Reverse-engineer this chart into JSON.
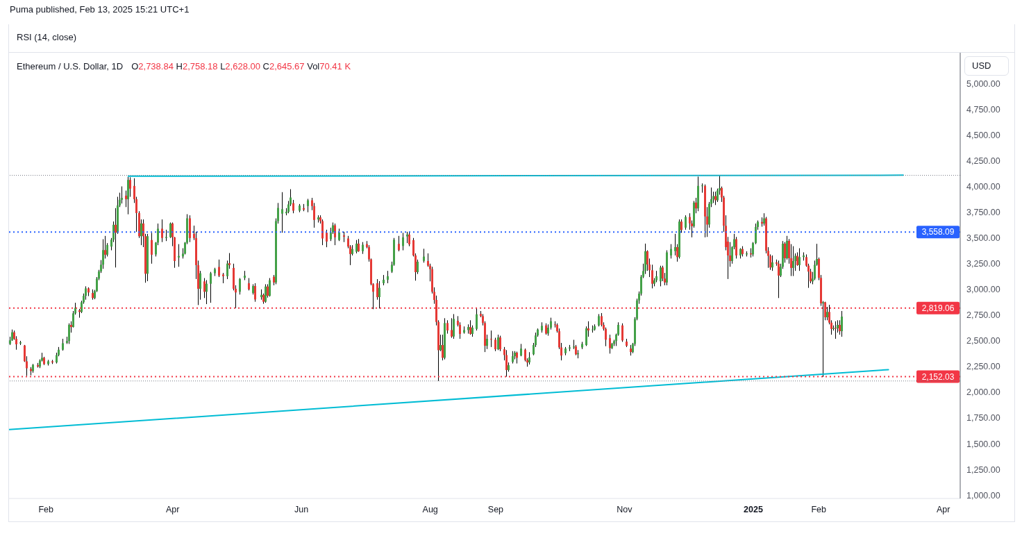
{
  "chart_data": {
    "type": "candlestick",
    "title": "Ethereum / U.S. Dollar, 1D",
    "ylabel": "USD",
    "annotations": [
      "Puma published, Feb 13, 2025 15:21 UTC+1",
      "RSI (14, close)",
      "O2,738.84 H2,758.18 L2,628.00 C2,645.67 Vol70.41 K"
    ],
    "x": [
      "2024-01-15",
      "2024-01-16",
      "2024-01-17",
      "2024-01-18",
      "2024-01-20",
      "2024-01-22",
      "2024-01-23",
      "2024-01-25",
      "2024-01-26",
      "2024-01-28",
      "2024-01-29",
      "2024-01-30",
      "2024-01-31",
      "2024-02-02",
      "2024-02-04",
      "2024-02-06",
      "2024-02-07",
      "2024-02-09",
      "2024-02-11",
      "2024-02-12",
      "2024-02-13",
      "2024-02-14",
      "2024-02-15",
      "2024-02-17",
      "2024-02-18",
      "2024-02-19",
      "2024-02-20",
      "2024-02-21",
      "2024-02-23",
      "2024-02-24",
      "2024-02-25",
      "2024-02-26",
      "2024-02-27",
      "2024-02-28",
      "2024-02-29",
      "2024-03-01",
      "2024-03-03",
      "2024-03-04",
      "2024-03-05",
      "2024-03-06",
      "2024-03-07",
      "2024-03-08",
      "2024-03-10",
      "2024-03-11",
      "2024-03-12",
      "2024-03-14",
      "2024-03-15",
      "2024-03-16",
      "2024-03-17",
      "2024-03-18",
      "2024-03-19",
      "2024-03-20",
      "2024-03-22",
      "2024-03-24",
      "2024-03-25",
      "2024-03-27",
      "2024-03-29",
      "2024-03-31",
      "2024-04-01",
      "2024-04-02",
      "2024-04-04",
      "2024-04-06",
      "2024-04-07",
      "2024-04-08",
      "2024-04-09",
      "2024-04-11",
      "2024-04-12",
      "2024-04-13",
      "2024-04-14",
      "2024-04-16",
      "2024-04-17",
      "2024-04-19",
      "2024-04-21",
      "2024-04-23",
      "2024-04-25",
      "2024-04-27",
      "2024-04-28",
      "2024-04-30",
      "2024-05-01",
      "2024-05-03",
      "2024-05-05",
      "2024-05-07",
      "2024-05-09",
      "2024-05-10",
      "2024-05-13",
      "2024-05-14",
      "2024-05-15",
      "2024-05-16",
      "2024-05-17",
      "2024-05-19",
      "2024-05-20",
      "2024-05-21",
      "2024-05-23",
      "2024-05-25",
      "2024-05-26",
      "2024-05-27",
      "2024-05-28",
      "2024-05-31",
      "2024-06-02",
      "2024-06-04",
      "2024-06-06",
      "2024-06-07",
      "2024-06-09",
      "2024-06-10",
      "2024-06-11",
      "2024-06-13",
      "2024-06-15",
      "2024-06-16",
      "2024-06-17",
      "2024-06-19",
      "2024-06-21",
      "2024-06-23",
      "2024-06-24",
      "2024-06-25",
      "2024-06-27",
      "2024-06-28",
      "2024-06-30",
      "2024-07-02",
      "2024-07-03",
      "2024-07-04",
      "2024-07-05",
      "2024-07-07",
      "2024-07-08",
      "2024-07-10",
      "2024-07-12",
      "2024-07-14",
      "2024-07-15",
      "2024-07-17",
      "2024-07-19",
      "2024-07-21",
      "2024-07-22",
      "2024-07-24",
      "2024-07-25",
      "2024-07-26",
      "2024-07-29",
      "2024-07-31",
      "2024-08-01",
      "2024-08-02",
      "2024-08-03",
      "2024-08-04",
      "2024-08-05",
      "2024-08-06",
      "2024-08-07",
      "2024-08-08",
      "2024-08-09",
      "2024-08-11",
      "2024-08-12",
      "2024-08-14",
      "2024-08-15",
      "2024-08-17",
      "2024-08-19",
      "2024-08-20",
      "2024-08-21",
      "2024-08-23",
      "2024-08-25",
      "2024-08-26",
      "2024-08-27",
      "2024-08-28",
      "2024-08-30",
      "2024-09-01",
      "2024-09-02",
      "2024-09-03",
      "2024-09-05",
      "2024-09-06",
      "2024-09-07",
      "2024-09-09",
      "2024-09-10",
      "2024-09-11",
      "2024-09-13",
      "2024-09-15",
      "2024-09-16",
      "2024-09-17",
      "2024-09-19",
      "2024-09-20",
      "2024-09-21",
      "2024-09-23",
      "2024-09-25",
      "2024-09-26",
      "2024-09-27",
      "2024-09-29",
      "2024-09-30",
      "2024-10-01",
      "2024-10-02",
      "2024-10-04",
      "2024-10-06",
      "2024-10-08",
      "2024-10-09",
      "2024-10-10",
      "2024-10-12",
      "2024-10-14",
      "2024-10-15",
      "2024-10-17",
      "2024-10-18",
      "2024-10-20",
      "2024-10-21",
      "2024-10-22",
      "2024-10-23",
      "2024-10-25",
      "2024-10-26",
      "2024-10-27",
      "2024-10-28",
      "2024-10-29",
      "2024-10-31",
      "2024-11-02",
      "2024-11-04",
      "2024-11-05",
      "2024-11-06",
      "2024-11-07",
      "2024-11-08",
      "2024-11-09",
      "2024-11-10",
      "2024-11-11",
      "2024-11-12",
      "2024-11-13",
      "2024-11-14",
      "2024-11-15",
      "2024-11-16",
      "2024-11-18",
      "2024-11-19",
      "2024-11-20",
      "2024-11-21",
      "2024-11-23",
      "2024-11-25",
      "2024-11-26",
      "2024-11-27",
      "2024-11-28",
      "2024-11-30",
      "2024-12-02",
      "2024-12-03",
      "2024-12-04",
      "2024-12-05",
      "2024-12-06",
      "2024-12-08",
      "2024-12-09",
      "2024-12-10",
      "2024-12-11",
      "2024-12-12",
      "2024-12-13",
      "2024-12-14",
      "2024-12-15",
      "2024-12-16",
      "2024-12-17",
      "2024-12-18",
      "2024-12-19",
      "2024-12-20",
      "2024-12-21",
      "2024-12-22",
      "2024-12-23",
      "2024-12-24",
      "2024-12-26",
      "2024-12-27",
      "2024-12-29",
      "2024-12-31",
      "2025-01-01",
      "2025-01-02",
      "2025-01-03",
      "2025-01-05",
      "2025-01-06",
      "2025-01-07",
      "2025-01-08",
      "2025-01-09",
      "2025-01-10",
      "2025-01-12",
      "2025-01-13",
      "2025-01-14",
      "2025-01-15",
      "2025-01-16",
      "2025-01-17",
      "2025-01-18",
      "2025-01-19",
      "2025-01-20",
      "2025-01-21",
      "2025-01-22",
      "2025-01-23",
      "2025-01-25",
      "2025-01-26",
      "2025-01-27",
      "2025-01-28",
      "2025-01-29",
      "2025-01-30",
      "2025-01-31",
      "2025-02-01",
      "2025-02-02",
      "2025-02-03",
      "2025-02-04",
      "2025-02-05",
      "2025-02-06",
      "2025-02-07",
      "2025-02-08",
      "2025-02-09",
      "2025-02-10",
      "2025-02-11",
      "2025-02-12"
    ],
    "ohlc": [
      [
        2470,
        2540,
        2460,
        2505
      ],
      [
        2505,
        2610,
        2500,
        2583
      ],
      [
        2583,
        2600,
        2510,
        2520
      ],
      [
        2520,
        2545,
        2414,
        2466
      ],
      [
        2475,
        2500,
        2460,
        2485
      ],
      [
        2455,
        2460,
        2295,
        2301
      ],
      [
        2301,
        2350,
        2159,
        2233
      ],
      [
        2227,
        2245,
        2165,
        2206
      ],
      [
        2206,
        2275,
        2190,
        2267
      ],
      [
        2263,
        2285,
        2240,
        2250
      ],
      [
        2250,
        2320,
        2235,
        2308
      ],
      [
        2308,
        2384,
        2300,
        2335
      ],
      [
        2335,
        2345,
        2265,
        2274
      ],
      [
        2274,
        2315,
        2260,
        2301
      ],
      [
        2301,
        2315,
        2275,
        2290
      ],
      [
        2290,
        2385,
        2280,
        2362
      ],
      [
        2362,
        2440,
        2350,
        2414
      ],
      [
        2414,
        2520,
        2405,
        2477
      ],
      [
        2480,
        2540,
        2470,
        2499
      ],
      [
        2499,
        2670,
        2470,
        2655
      ],
      [
        2655,
        2690,
        2580,
        2634
      ],
      [
        2634,
        2790,
        2630,
        2767
      ],
      [
        2767,
        2870,
        2755,
        2821
      ],
      [
        2797,
        2810,
        2725,
        2781
      ],
      [
        2781,
        2890,
        2770,
        2875
      ],
      [
        2875,
        2960,
        2860,
        2938
      ],
      [
        2938,
        3030,
        2900,
        3010
      ],
      [
        3010,
        3020,
        2935,
        2970
      ],
      [
        2965,
        3000,
        2900,
        2916
      ],
      [
        2916,
        2995,
        2905,
        2983
      ],
      [
        2983,
        3120,
        2975,
        3105
      ],
      [
        3105,
        3190,
        3090,
        3175
      ],
      [
        3175,
        3285,
        3160,
        3240
      ],
      [
        3240,
        3488,
        3200,
        3382
      ],
      [
        3382,
        3520,
        3300,
        3337
      ],
      [
        3337,
        3450,
        3320,
        3432
      ],
      [
        3416,
        3500,
        3380,
        3483
      ],
      [
        3483,
        3660,
        3460,
        3628
      ],
      [
        3628,
        3790,
        3213,
        3551
      ],
      [
        3551,
        3900,
        3540,
        3817
      ],
      [
        3817,
        3940,
        3800,
        3871
      ],
      [
        3871,
        4001,
        3835,
        3889
      ],
      [
        3911,
        3960,
        3800,
        3877
      ],
      [
        3877,
        4093,
        3730,
        4064
      ],
      [
        4064,
        4090,
        3900,
        3979
      ],
      [
        4006,
        4080,
        3840,
        3877
      ],
      [
        3877,
        3900,
        3560,
        3742
      ],
      [
        3742,
        3760,
        3500,
        3517
      ],
      [
        3517,
        3680,
        3430,
        3641
      ],
      [
        3641,
        3680,
        3411,
        3517
      ],
      [
        3517,
        3540,
        3065,
        3152
      ],
      [
        3152,
        3540,
        3080,
        3517
      ],
      [
        3480,
        3550,
        3250,
        3337
      ],
      [
        3340,
        3460,
        3320,
        3455
      ],
      [
        3455,
        3640,
        3430,
        3590
      ],
      [
        3590,
        3680,
        3460,
        3500
      ],
      [
        3500,
        3580,
        3470,
        3510
      ],
      [
        3508,
        3650,
        3500,
        3641
      ],
      [
        3641,
        3650,
        3420,
        3506
      ],
      [
        3506,
        3510,
        3210,
        3276
      ],
      [
        3310,
        3440,
        3220,
        3325
      ],
      [
        3320,
        3400,
        3300,
        3348
      ],
      [
        3348,
        3460,
        3340,
        3454
      ],
      [
        3454,
        3731,
        3440,
        3691
      ],
      [
        3691,
        3720,
        3460,
        3499
      ],
      [
        3540,
        3620,
        3480,
        3499
      ],
      [
        3499,
        3560,
        3101,
        3236
      ],
      [
        3236,
        3280,
        2848,
        3006
      ],
      [
        3006,
        3180,
        2900,
        3157
      ],
      [
        3078,
        3110,
        2916,
        2977
      ],
      [
        2977,
        3090,
        2857,
        3055
      ],
      [
        3055,
        3170,
        2870,
        3157
      ],
      [
        3157,
        3210,
        3130,
        3197
      ],
      [
        3218,
        3290,
        3120,
        3134
      ],
      [
        3145,
        3160,
        3060,
        3128
      ],
      [
        3128,
        3280,
        3100,
        3251
      ],
      [
        3256,
        3353,
        3200,
        3236
      ],
      [
        3209,
        3250,
        2990,
        3006
      ],
      [
        3006,
        3040,
        2819,
        2970
      ],
      [
        2977,
        3110,
        2950,
        3101
      ],
      [
        3112,
        3180,
        3090,
        3134
      ],
      [
        3060,
        3110,
        2990,
        3000
      ],
      [
        2965,
        3050,
        2950,
        3033
      ],
      [
        3033,
        3060,
        2880,
        2902
      ],
      [
        2925,
        3000,
        2900,
        2947
      ],
      [
        2947,
        2960,
        2860,
        2880
      ],
      [
        2880,
        3050,
        2870,
        3028
      ],
      [
        3028,
        3050,
        2920,
        2938
      ],
      [
        2938,
        3110,
        2930,
        3089
      ],
      [
        3123,
        3140,
        3040,
        3067
      ],
      [
        3067,
        3690,
        3050,
        3664
      ],
      [
        3664,
        3840,
        3640,
        3792
      ],
      [
        3736,
        3945,
        3551,
        3780
      ],
      [
        3740,
        3790,
        3720,
        3754
      ],
      [
        3754,
        3860,
        3740,
        3826
      ],
      [
        3826,
        3974,
        3810,
        3893
      ],
      [
        3839,
        3870,
        3740,
        3765
      ],
      [
        3765,
        3830,
        3750,
        3815
      ],
      [
        3790,
        3830,
        3760,
        3775
      ],
      [
        3810,
        3880,
        3750,
        3866
      ],
      [
        3866,
        3890,
        3770,
        3810
      ],
      [
        3810,
        3840,
        3600,
        3675
      ],
      [
        3680,
        3720,
        3650,
        3700
      ],
      [
        3700,
        3720,
        3640,
        3664
      ],
      [
        3664,
        3680,
        3430,
        3495
      ],
      [
        3551,
        3580,
        3410,
        3465
      ],
      [
        3488,
        3600,
        3470,
        3555
      ],
      [
        3555,
        3650,
        3540,
        3623
      ],
      [
        3623,
        3640,
        3430,
        3506
      ],
      [
        3480,
        3590,
        3470,
        3555
      ],
      [
        3525,
        3560,
        3460,
        3512
      ],
      [
        3495,
        3520,
        3400,
        3416
      ],
      [
        3416,
        3430,
        3236,
        3344
      ],
      [
        3344,
        3430,
        3330,
        3393
      ],
      [
        3366,
        3480,
        3350,
        3445
      ],
      [
        3445,
        3490,
        3365,
        3371
      ],
      [
        3371,
        3460,
        3345,
        3434
      ],
      [
        3440,
        3470,
        3400,
        3411
      ],
      [
        3411,
        3430,
        3270,
        3292
      ],
      [
        3292,
        3300,
        3040,
        3051
      ],
      [
        3051,
        3060,
        2808,
        2977
      ],
      [
        3060,
        3100,
        2900,
        2925
      ],
      [
        2925,
        3080,
        2815,
        3015
      ],
      [
        3060,
        3140,
        3040,
        3094
      ],
      [
        3094,
        3180,
        3060,
        3128
      ],
      [
        3172,
        3270,
        3160,
        3240
      ],
      [
        3240,
        3500,
        3230,
        3483
      ],
      [
        3443,
        3520,
        3370,
        3382
      ],
      [
        3422,
        3550,
        3380,
        3506
      ],
      [
        3515,
        3560,
        3450,
        3533
      ],
      [
        3533,
        3560,
        3420,
        3438
      ],
      [
        3479,
        3500,
        3320,
        3330
      ],
      [
        3330,
        3350,
        3085,
        3168
      ],
      [
        3168,
        3290,
        3150,
        3269
      ],
      [
        3277,
        3395,
        3260,
        3319
      ],
      [
        3276,
        3350,
        3220,
        3231
      ],
      [
        3231,
        3250,
        3078,
        3197
      ],
      [
        3197,
        3220,
        2960,
        2977
      ],
      [
        2977,
        3020,
        2860,
        2898
      ],
      [
        2898,
        2940,
        2650,
        2684
      ],
      [
        2684,
        2700,
        2110,
        2409
      ],
      [
        2409,
        2560,
        2400,
        2459
      ],
      [
        2459,
        2560,
        2310,
        2335
      ],
      [
        2335,
        2720,
        2320,
        2673
      ],
      [
        2673,
        2700,
        2570,
        2601
      ],
      [
        2605,
        2720,
        2530,
        2542
      ],
      [
        2542,
        2760,
        2520,
        2713
      ],
      [
        2695,
        2740,
        2640,
        2655
      ],
      [
        2655,
        2680,
        2520,
        2567
      ],
      [
        2580,
        2640,
        2570,
        2605
      ],
      [
        2605,
        2660,
        2570,
        2634
      ],
      [
        2634,
        2700,
        2560,
        2567
      ],
      [
        2567,
        2650,
        2540,
        2628
      ],
      [
        2616,
        2819,
        2600,
        2758
      ],
      [
        2762,
        2790,
        2730,
        2740
      ],
      [
        2740,
        2760,
        2650,
        2673
      ],
      [
        2673,
        2690,
        2391,
        2452
      ],
      [
        2452,
        2560,
        2420,
        2520
      ],
      [
        2520,
        2600,
        2440,
        2515
      ],
      [
        2511,
        2530,
        2400,
        2418
      ],
      [
        2418,
        2560,
        2410,
        2533
      ],
      [
        2533,
        2550,
        2400,
        2418
      ],
      [
        2418,
        2440,
        2310,
        2362
      ],
      [
        2362,
        2410,
        2152,
        2216
      ],
      [
        2216,
        2290,
        2200,
        2263
      ],
      [
        2295,
        2400,
        2280,
        2351
      ],
      [
        2351,
        2400,
        2320,
        2385
      ],
      [
        2385,
        2395,
        2280,
        2335
      ],
      [
        2357,
        2470,
        2350,
        2425
      ],
      [
        2414,
        2425,
        2300,
        2313
      ],
      [
        2313,
        2330,
        2249,
        2290
      ],
      [
        2290,
        2390,
        2270,
        2339
      ],
      [
        2369,
        2480,
        2360,
        2459
      ],
      [
        2459,
        2580,
        2440,
        2553
      ],
      [
        2553,
        2620,
        2540,
        2610
      ],
      [
        2601,
        2680,
        2580,
        2646
      ],
      [
        2650,
        2670,
        2560,
        2571
      ],
      [
        2571,
        2660,
        2550,
        2628
      ],
      [
        2628,
        2725,
        2610,
        2691
      ],
      [
        2660,
        2690,
        2630,
        2655
      ],
      [
        2655,
        2670,
        2580,
        2594
      ],
      [
        2594,
        2620,
        2420,
        2436
      ],
      [
        2436,
        2480,
        2310,
        2357
      ],
      [
        2380,
        2440,
        2360,
        2425
      ],
      [
        2425,
        2460,
        2400,
        2436
      ],
      [
        2436,
        2510,
        2420,
        2445
      ],
      [
        2445,
        2460,
        2360,
        2369
      ],
      [
        2369,
        2410,
        2330,
        2380
      ],
      [
        2436,
        2490,
        2420,
        2470
      ],
      [
        2459,
        2640,
        2450,
        2621
      ],
      [
        2621,
        2690,
        2540,
        2601
      ],
      [
        2605,
        2650,
        2580,
        2610
      ],
      [
        2610,
        2660,
        2600,
        2643
      ],
      [
        2650,
        2760,
        2640,
        2740
      ],
      [
        2740,
        2770,
        2640,
        2655
      ],
      [
        2655,
        2680,
        2600,
        2616
      ],
      [
        2616,
        2630,
        2448,
        2511
      ],
      [
        2526,
        2560,
        2376,
        2429
      ],
      [
        2429,
        2480,
        2420,
        2470
      ],
      [
        2470,
        2510,
        2450,
        2497
      ],
      [
        2497,
        2570,
        2450,
        2560
      ],
      [
        2560,
        2680,
        2550,
        2655
      ],
      [
        2650,
        2670,
        2490,
        2504
      ],
      [
        2493,
        2520,
        2440,
        2452
      ],
      [
        2425,
        2460,
        2357,
        2391
      ],
      [
        2391,
        2480,
        2380,
        2470
      ],
      [
        2470,
        2730,
        2450,
        2713
      ],
      [
        2713,
        2910,
        2700,
        2893
      ],
      [
        2893,
        2980,
        2860,
        2959
      ],
      [
        2959,
        3140,
        2940,
        3123
      ],
      [
        3123,
        3250,
        3110,
        3179
      ],
      [
        3179,
        3445,
        3150,
        3371
      ],
      [
        3371,
        3380,
        3180,
        3242
      ],
      [
        3242,
        3300,
        3120,
        3186
      ],
      [
        3186,
        3240,
        3010,
        3055
      ],
      [
        3055,
        3110,
        3030,
        3089
      ],
      [
        3089,
        3180,
        3070,
        3128
      ],
      [
        3078,
        3230,
        3030,
        3213
      ],
      [
        3213,
        3230,
        3080,
        3105
      ],
      [
        3105,
        3160,
        3040,
        3067
      ],
      [
        3067,
        3380,
        3040,
        3360
      ],
      [
        3330,
        3440,
        3300,
        3393
      ],
      [
        3372,
        3540,
        3330,
        3411
      ],
      [
        3411,
        3440,
        3270,
        3314
      ],
      [
        3314,
        3680,
        3300,
        3659
      ],
      [
        3659,
        3680,
        3550,
        3578
      ],
      [
        3600,
        3720,
        3580,
        3704
      ],
      [
        3704,
        3740,
        3580,
        3641
      ],
      [
        3641,
        3670,
        3506,
        3614
      ],
      [
        3614,
        3860,
        3600,
        3844
      ],
      [
        3844,
        3890,
        3740,
        3787
      ],
      [
        3787,
        4096,
        3760,
        4006
      ],
      [
        4006,
        4030,
        3940,
        4010
      ],
      [
        4006,
        4020,
        3506,
        3709
      ],
      [
        3709,
        3800,
        3510,
        3630
      ],
      [
        3630,
        3850,
        3600,
        3832
      ],
      [
        3832,
        3990,
        3800,
        3877
      ],
      [
        3877,
        3950,
        3840,
        3907
      ],
      [
        3907,
        3950,
        3820,
        3866
      ],
      [
        3866,
        3980,
        3850,
        3961
      ],
      [
        3961,
        4109,
        3920,
        3986
      ],
      [
        3986,
        4000,
        3850,
        3893
      ],
      [
        3893,
        3910,
        3560,
        3618
      ],
      [
        3618,
        3720,
        3380,
        3411
      ],
      [
        3465,
        3510,
        3101,
        3330
      ],
      [
        3330,
        3460,
        3220,
        3276
      ],
      [
        3276,
        3420,
        3250,
        3411
      ],
      [
        3411,
        3540,
        3390,
        3488
      ],
      [
        3488,
        3510,
        3300,
        3330
      ],
      [
        3330,
        3400,
        3300,
        3393
      ],
      [
        3393,
        3420,
        3320,
        3344
      ],
      [
        3340,
        3370,
        3320,
        3350
      ],
      [
        3350,
        3400,
        3310,
        3340
      ],
      [
        3340,
        3460,
        3320,
        3450
      ],
      [
        3450,
        3640,
        3440,
        3607
      ],
      [
        3607,
        3670,
        3580,
        3657
      ],
      [
        3655,
        3700,
        3610,
        3640
      ],
      [
        3640,
        3740,
        3620,
        3690
      ],
      [
        3690,
        3705,
        3350,
        3375
      ],
      [
        3375,
        3410,
        3210,
        3326
      ],
      [
        3326,
        3340,
        3190,
        3213
      ],
      [
        3213,
        3330,
        3180,
        3263
      ],
      [
        3263,
        3290,
        3230,
        3250
      ],
      [
        3250,
        3280,
        2916,
        3134
      ],
      [
        3134,
        3250,
        3120,
        3220
      ],
      [
        3220,
        3470,
        3200,
        3445
      ],
      [
        3445,
        3460,
        3260,
        3303
      ],
      [
        3303,
        3520,
        3290,
        3472
      ],
      [
        3472,
        3490,
        3250,
        3303
      ],
      [
        3303,
        3440,
        3130,
        3209
      ],
      [
        3209,
        3420,
        3130,
        3276
      ],
      [
        3276,
        3350,
        3180,
        3326
      ],
      [
        3326,
        3360,
        3230,
        3236
      ],
      [
        3236,
        3400,
        3180,
        3314
      ],
      [
        3314,
        3360,
        3280,
        3330
      ],
      [
        3314,
        3340,
        3220,
        3231
      ],
      [
        3231,
        3250,
        3015,
        3173
      ],
      [
        3173,
        3200,
        3060,
        3078
      ],
      [
        3078,
        3170,
        3050,
        3105
      ],
      [
        3105,
        3280,
        3090,
        3240
      ],
      [
        3240,
        3443,
        3230,
        3296
      ],
      [
        3296,
        3310,
        3090,
        3112
      ],
      [
        3112,
        3140,
        2840,
        2864
      ],
      [
        2864,
        2887,
        2150,
        2875
      ],
      [
        2875,
        2880,
        2700,
        2729
      ],
      [
        2729,
        2830,
        2700,
        2781
      ],
      [
        2781,
        2850,
        2660,
        2677
      ],
      [
        2677,
        2700,
        2560,
        2616
      ],
      [
        2616,
        2650,
        2600,
        2625
      ],
      [
        2625,
        2690,
        2520,
        2621
      ],
      [
        2621,
        2700,
        2580,
        2655
      ],
      [
        2655,
        2700,
        2560,
        2594
      ],
      [
        2594,
        2790,
        2540,
        2736
      ]
    ],
    "series": [
      {
        "type": "line",
        "x": [
          "2024-03-11",
          "2025-03-13"
        ],
        "values": [
          4100,
          4110
        ],
        "color": "#00bcd4"
      },
      {
        "type": "line",
        "x": [
          "2024-01-14T12:00",
          "2025-03-06"
        ],
        "values": [
          1637,
          2220
        ],
        "color": "#00bcd4"
      }
    ],
    "xlim": [
      "2024-01-14T12:00",
      "2025-04-09"
    ],
    "xticks": [
      {
        "value": "2024-02-01",
        "label": "Feb"
      },
      {
        "value": "2024-04-01",
        "label": "Apr"
      },
      {
        "value": "2024-06-01",
        "label": "Jun"
      },
      {
        "value": "2024-08-01",
        "label": "Aug"
      },
      {
        "value": "2024-09-01",
        "label": "Sep"
      },
      {
        "value": "2024-11-01",
        "label": "Nov"
      },
      {
        "value": "2025-01-01",
        "label": "2025"
      },
      {
        "value": "2025-02-01",
        "label": "Feb"
      },
      {
        "value": "2025-04-01",
        "label": "Apr"
      }
    ],
    "ylim": [
      968,
      5300
    ],
    "yticks": [
      {
        "value": 1000,
        "label": "1,000.00"
      },
      {
        "value": 1250,
        "label": "1,250.00"
      },
      {
        "value": 1500,
        "label": "1,500.00"
      },
      {
        "value": 1750,
        "label": "1,750.00"
      },
      {
        "value": 2000,
        "label": "2,000.00"
      },
      {
        "value": 2250,
        "label": "2,250.00"
      },
      {
        "value": 2500,
        "label": "2,500.00"
      },
      {
        "value": 2750,
        "label": "2,750.00"
      },
      {
        "value": 3000,
        "label": "3,000.00"
      },
      {
        "value": 3250,
        "label": "3,250.00"
      },
      {
        "value": 3500,
        "label": "3,500.00"
      },
      {
        "value": 3750,
        "label": "3,750.00"
      },
      {
        "value": 4000,
        "label": "4,000.00"
      },
      {
        "value": 4250,
        "label": "4,250.00"
      },
      {
        "value": 4500,
        "label": "4,500.00"
      },
      {
        "value": 4750,
        "label": "4,750.00"
      },
      {
        "value": 5000,
        "label": "5,000.00"
      }
    ],
    "ref_lines": [
      {
        "axis": "y",
        "value": 4109,
        "color": "#787b86",
        "line_style": "dotted"
      },
      {
        "axis": "y",
        "value": 3558.09,
        "label": "3,558.09",
        "color": "#2962ff",
        "line_style": "dotted"
      },
      {
        "axis": "y",
        "value": 2819.06,
        "label": "2,819.06",
        "color": "#f23645",
        "line_style": "dotted"
      },
      {
        "axis": "y",
        "value": 2152.03,
        "label": "2,152.03",
        "color": "#f23645",
        "line_style": "dotted"
      },
      {
        "axis": "y",
        "value": 2110,
        "color": "#787b86",
        "line_style": "dotted"
      }
    ]
  }
}
